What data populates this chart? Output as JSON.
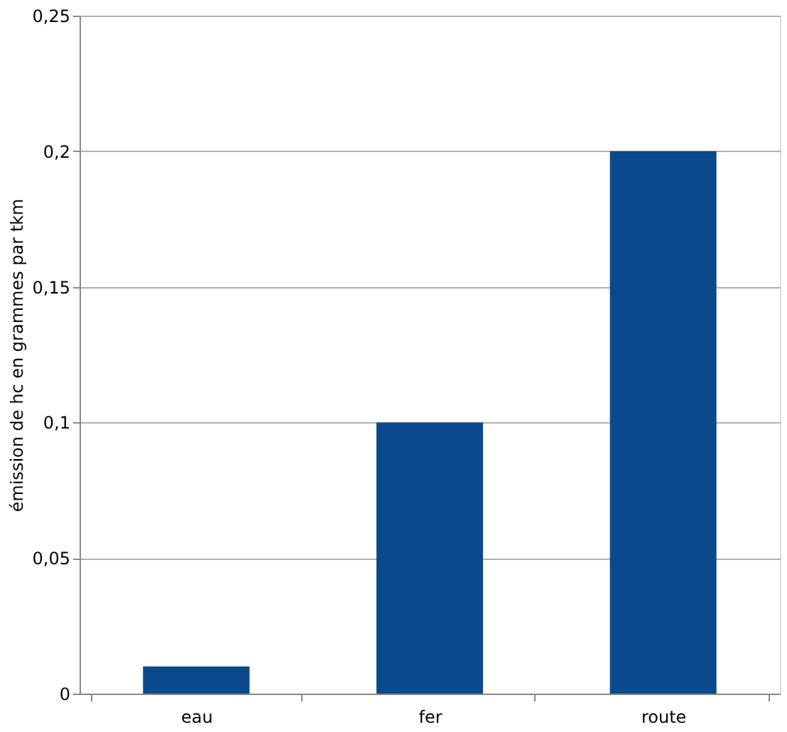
{
  "chart_data": {
    "type": "bar",
    "ylabel": "émission de hc en grammes par tkm",
    "categories": [
      "eau",
      "fer",
      "route"
    ],
    "values": [
      0.01,
      0.1,
      0.2
    ],
    "color": "#0a4a8c",
    "ylim": [
      0,
      0.25
    ],
    "yticks": [
      0,
      {
        "value": 0.05,
        "label": "0,05"
      },
      {
        "value": 0.1,
        "label": "0,1"
      },
      {
        "value": 0.15,
        "label": "0,15"
      },
      {
        "value": 0.2,
        "label": "0,2"
      },
      {
        "value": 0.25,
        "label": "0,25"
      }
    ],
    "grid": "y"
  }
}
